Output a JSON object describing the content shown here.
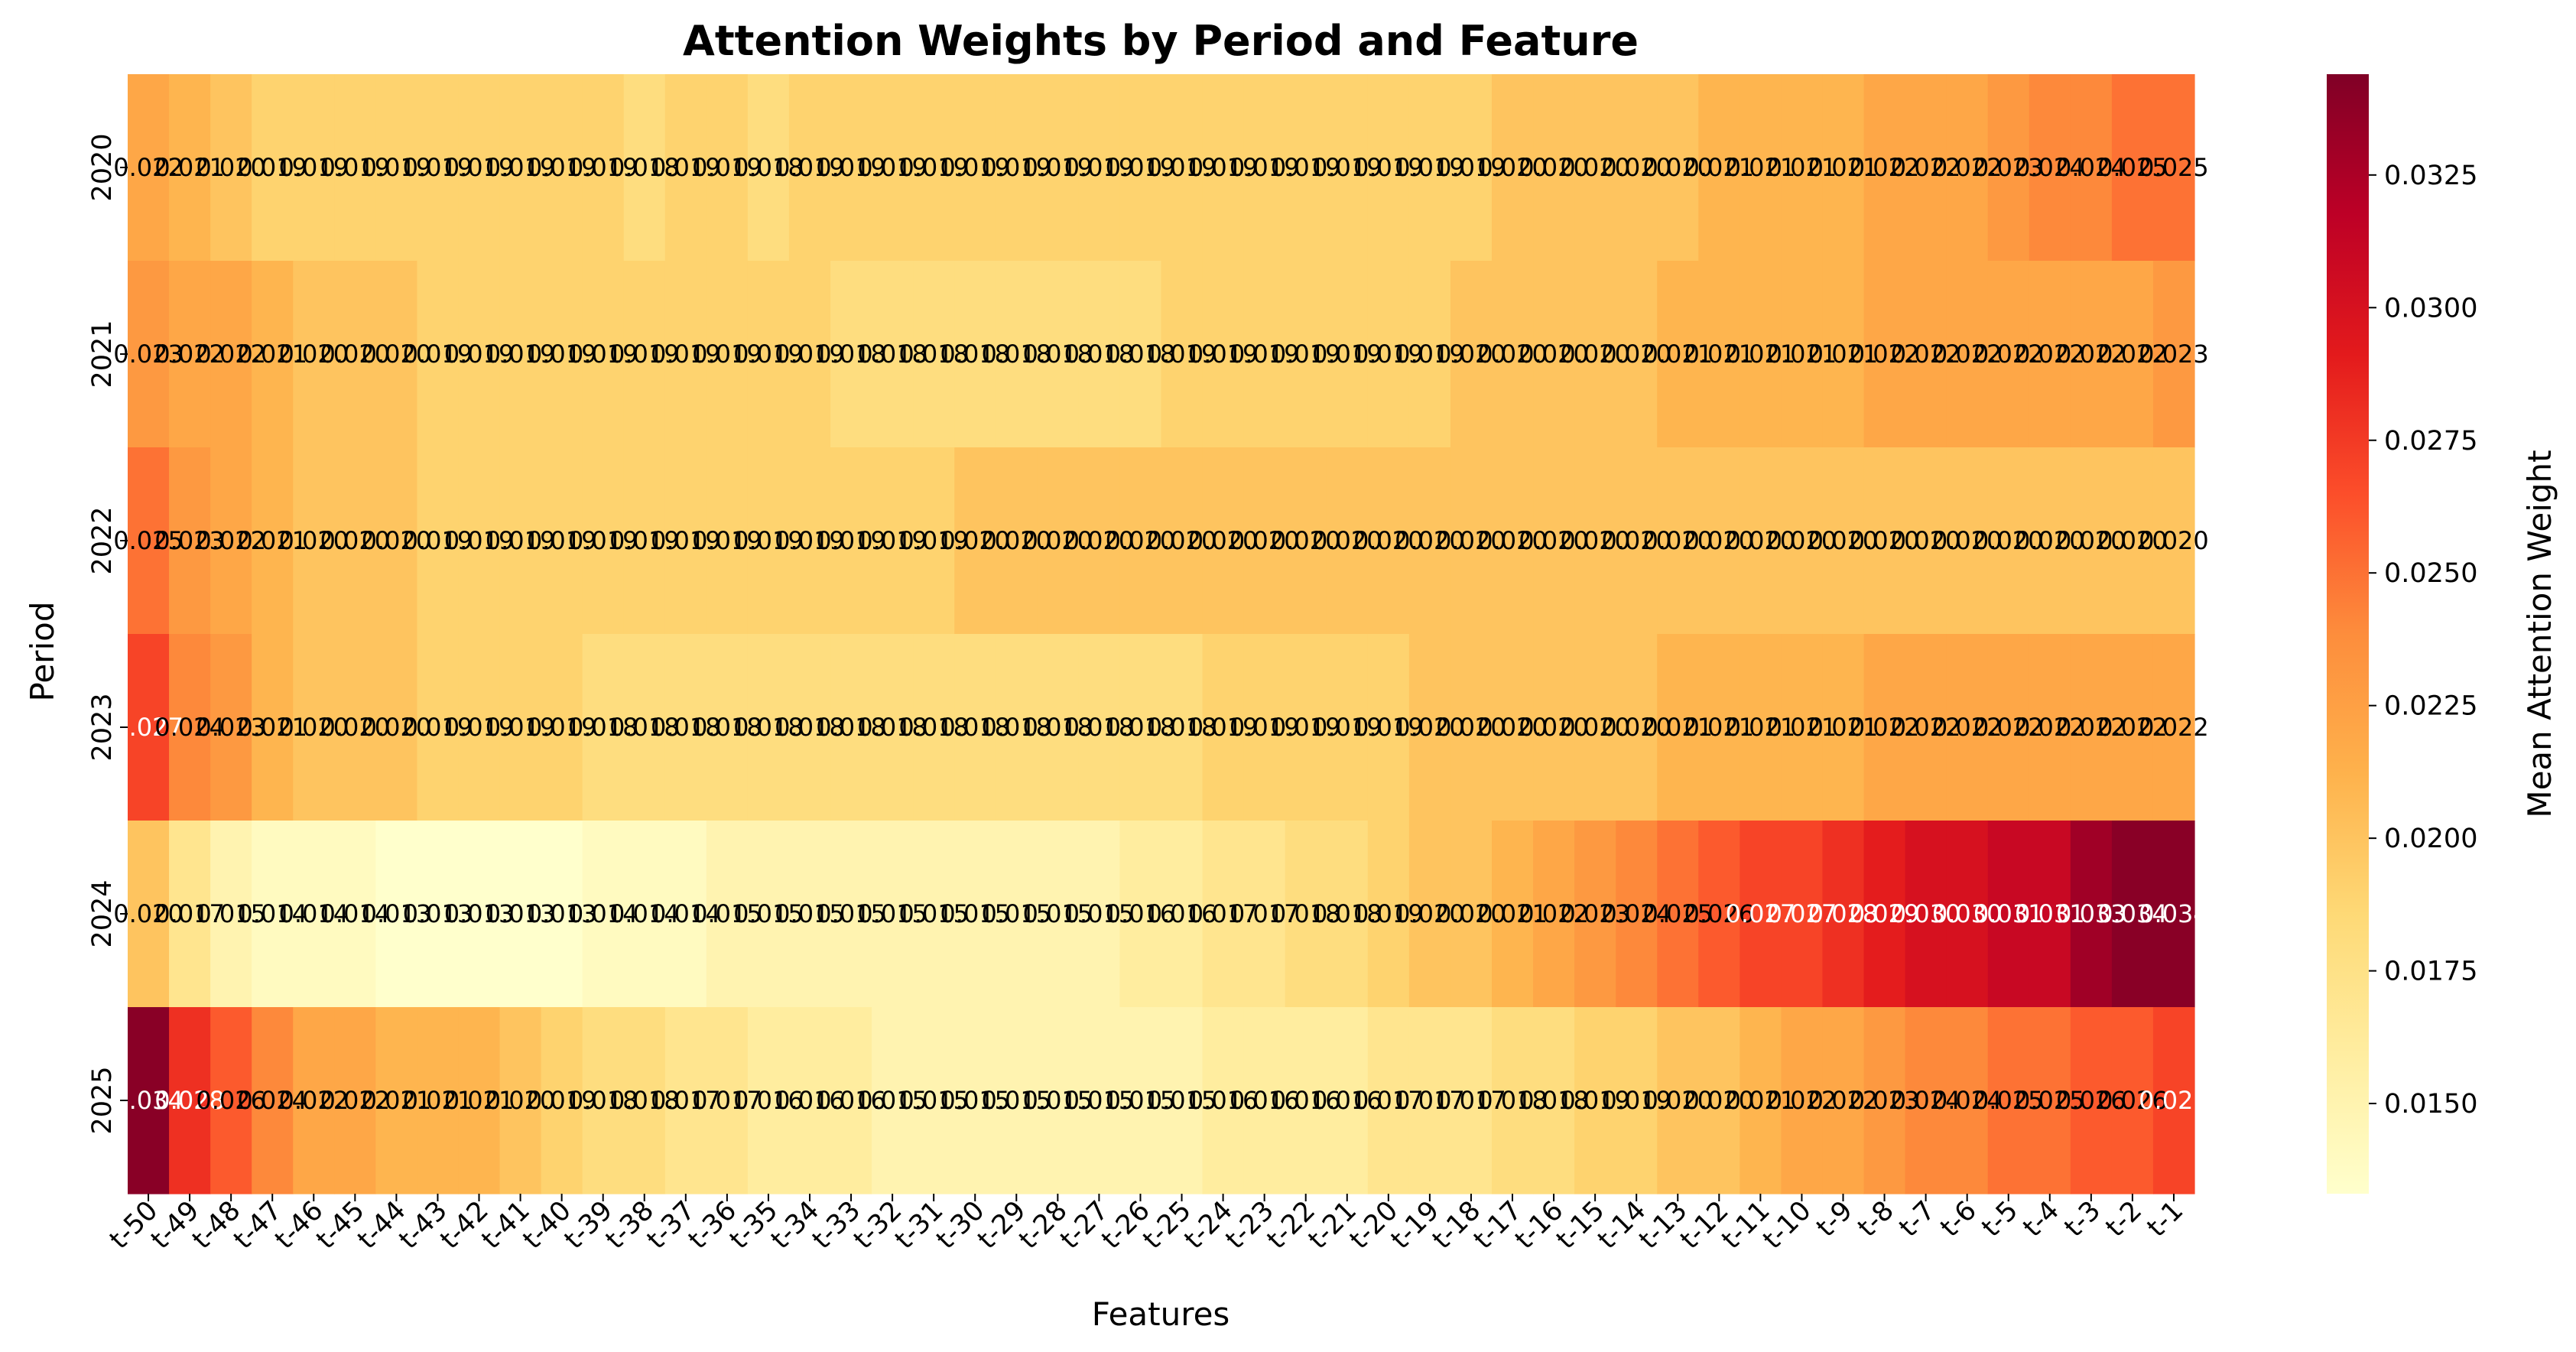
{
  "chart_data": {
    "type": "heatmap",
    "title": "Attention Weights by Period and Feature",
    "xlabel": "Features",
    "ylabel": "Period",
    "colorbar_label": "Mean Attention Weight",
    "colormap": "YlOrRd",
    "colormap_stops": [
      "#ffffcc",
      "#ffeda0",
      "#fed976",
      "#feb24c",
      "#fd8d3c",
      "#fc4e2a",
      "#e31a1c",
      "#bd0026",
      "#800026"
    ],
    "value_range": [
      0.0133,
      0.0344
    ],
    "colorbar_ticks": [
      0.015,
      0.0175,
      0.02,
      0.0225,
      0.025,
      0.0275,
      0.03,
      0.0325
    ],
    "colorbar_tick_labels": [
      "0.0150",
      "0.0175",
      "0.0200",
      "0.0225",
      "0.0250",
      "0.0275",
      "0.0300",
      "0.0325"
    ],
    "columns": [
      "t-50",
      "t-49",
      "t-48",
      "t-47",
      "t-46",
      "t-45",
      "t-44",
      "t-43",
      "t-42",
      "t-41",
      "t-40",
      "t-39",
      "t-38",
      "t-37",
      "t-36",
      "t-35",
      "t-34",
      "t-33",
      "t-32",
      "t-31",
      "t-30",
      "t-29",
      "t-28",
      "t-27",
      "t-26",
      "t-25",
      "t-24",
      "t-23",
      "t-22",
      "t-21",
      "t-20",
      "t-19",
      "t-18",
      "t-17",
      "t-16",
      "t-15",
      "t-14",
      "t-13",
      "t-12",
      "t-11",
      "t-10",
      "t-9",
      "t-8",
      "t-7",
      "t-6",
      "t-5",
      "t-4",
      "t-3",
      "t-2",
      "t-1"
    ],
    "rows": [
      "2020",
      "2021",
      "2022",
      "2023",
      "2024",
      "2025"
    ],
    "values": [
      [
        0.022,
        0.021,
        0.02,
        0.019,
        0.019,
        0.019,
        0.019,
        0.019,
        0.019,
        0.019,
        0.019,
        0.019,
        0.018,
        0.019,
        0.019,
        0.018,
        0.019,
        0.019,
        0.019,
        0.019,
        0.019,
        0.019,
        0.019,
        0.019,
        0.019,
        0.019,
        0.019,
        0.019,
        0.019,
        0.019,
        0.019,
        0.019,
        0.019,
        0.02,
        0.02,
        0.02,
        0.02,
        0.02,
        0.021,
        0.021,
        0.021,
        0.021,
        0.022,
        0.022,
        0.022,
        0.023,
        0.024,
        0.024,
        0.025,
        0.025
      ],
      [
        0.023,
        0.022,
        0.022,
        0.021,
        0.02,
        0.02,
        0.02,
        0.019,
        0.019,
        0.019,
        0.019,
        0.019,
        0.019,
        0.019,
        0.019,
        0.019,
        0.019,
        0.018,
        0.018,
        0.018,
        0.018,
        0.018,
        0.018,
        0.018,
        0.018,
        0.019,
        0.019,
        0.019,
        0.019,
        0.019,
        0.019,
        0.019,
        0.02,
        0.02,
        0.02,
        0.02,
        0.02,
        0.021,
        0.021,
        0.021,
        0.021,
        0.021,
        0.022,
        0.022,
        0.022,
        0.022,
        0.022,
        0.022,
        0.022,
        0.023
      ],
      [
        0.025,
        0.023,
        0.022,
        0.021,
        0.02,
        0.02,
        0.02,
        0.019,
        0.019,
        0.019,
        0.019,
        0.019,
        0.019,
        0.019,
        0.019,
        0.019,
        0.019,
        0.019,
        0.019,
        0.019,
        0.02,
        0.02,
        0.02,
        0.02,
        0.02,
        0.02,
        0.02,
        0.02,
        0.02,
        0.02,
        0.02,
        0.02,
        0.02,
        0.02,
        0.02,
        0.02,
        0.02,
        0.02,
        0.02,
        0.02,
        0.02,
        0.02,
        0.02,
        0.02,
        0.02,
        0.02,
        0.02,
        0.02,
        0.02,
        0.02
      ],
      [
        0.027,
        0.024,
        0.023,
        0.021,
        0.02,
        0.02,
        0.02,
        0.019,
        0.019,
        0.019,
        0.019,
        0.018,
        0.018,
        0.018,
        0.018,
        0.018,
        0.018,
        0.018,
        0.018,
        0.018,
        0.018,
        0.018,
        0.018,
        0.018,
        0.018,
        0.018,
        0.019,
        0.019,
        0.019,
        0.019,
        0.019,
        0.02,
        0.02,
        0.02,
        0.02,
        0.02,
        0.02,
        0.021,
        0.021,
        0.021,
        0.021,
        0.021,
        0.022,
        0.022,
        0.022,
        0.022,
        0.022,
        0.022,
        0.022,
        0.022
      ],
      [
        0.02,
        0.017,
        0.015,
        0.014,
        0.014,
        0.014,
        0.013,
        0.013,
        0.013,
        0.013,
        0.013,
        0.014,
        0.014,
        0.014,
        0.015,
        0.015,
        0.015,
        0.015,
        0.015,
        0.015,
        0.015,
        0.015,
        0.015,
        0.015,
        0.016,
        0.016,
        0.017,
        0.017,
        0.018,
        0.018,
        0.019,
        0.02,
        0.02,
        0.021,
        0.022,
        0.023,
        0.024,
        0.025,
        0.026,
        0.027,
        0.027,
        0.028,
        0.029,
        0.03,
        0.03,
        0.031,
        0.031,
        0.033,
        0.034,
        0.034
      ],
      [
        0.034,
        0.028,
        0.026,
        0.024,
        0.022,
        0.022,
        0.021,
        0.021,
        0.021,
        0.02,
        0.019,
        0.018,
        0.018,
        0.017,
        0.017,
        0.016,
        0.016,
        0.016,
        0.015,
        0.015,
        0.015,
        0.015,
        0.015,
        0.015,
        0.015,
        0.015,
        0.016,
        0.016,
        0.016,
        0.016,
        0.017,
        0.017,
        0.017,
        0.018,
        0.018,
        0.019,
        0.019,
        0.02,
        0.02,
        0.021,
        0.022,
        0.022,
        0.023,
        0.024,
        0.024,
        0.025,
        0.025,
        0.026,
        0.026,
        0.027
      ]
    ],
    "display_values": [
      [
        0.022,
        0.021,
        0.02,
        0.019,
        0.019,
        0.019,
        0.019,
        0.019,
        0.019,
        0.019,
        0.019,
        0.019,
        0.018,
        0.019,
        0.019,
        0.018,
        0.019,
        0.019,
        0.019,
        0.019,
        0.019,
        0.019,
        0.019,
        0.019,
        0.019,
        0.019,
        0.019,
        0.019,
        0.019,
        0.019,
        0.019,
        0.019,
        0.019,
        0.02,
        0.02,
        0.02,
        0.02,
        0.02,
        0.021,
        0.021,
        0.021,
        0.021,
        0.022,
        0.022,
        0.022,
        0.023,
        0.024,
        0.024,
        0.025,
        0.025
      ],
      [
        0.023,
        0.022,
        0.022,
        0.021,
        0.02,
        0.02,
        0.02,
        0.019,
        0.019,
        0.019,
        0.019,
        0.019,
        0.019,
        0.019,
        0.019,
        0.019,
        0.019,
        0.018,
        0.018,
        0.018,
        0.018,
        0.018,
        0.018,
        0.018,
        0.018,
        0.019,
        0.019,
        0.019,
        0.019,
        0.019,
        0.019,
        0.019,
        0.02,
        0.02,
        0.02,
        0.02,
        0.02,
        0.021,
        0.021,
        0.021,
        0.021,
        0.021,
        0.022,
        0.022,
        0.022,
        0.022,
        0.022,
        0.022,
        0.022,
        0.023
      ],
      [
        0.025,
        0.023,
        0.022,
        0.021,
        0.02,
        0.02,
        0.02,
        0.019,
        0.019,
        0.019,
        0.019,
        0.019,
        0.019,
        0.019,
        0.019,
        0.019,
        0.019,
        0.019,
        0.019,
        0.019,
        0.02,
        0.02,
        0.02,
        0.02,
        0.02,
        0.02,
        0.02,
        0.02,
        0.02,
        0.02,
        0.02,
        0.02,
        0.02,
        0.02,
        0.02,
        0.02,
        0.02,
        0.02,
        0.02,
        0.02,
        0.02,
        0.02,
        0.02,
        0.02,
        0.02,
        0.02,
        0.02,
        0.02,
        0.02,
        0.02
      ],
      [
        0.027,
        0.024,
        0.023,
        0.021,
        0.02,
        0.02,
        0.02,
        0.019,
        0.019,
        0.019,
        0.019,
        0.018,
        0.018,
        0.018,
        0.018,
        0.018,
        0.018,
        0.018,
        0.018,
        0.018,
        0.018,
        0.018,
        0.018,
        0.018,
        0.018,
        0.018,
        0.019,
        0.019,
        0.019,
        0.019,
        0.019,
        0.02,
        0.02,
        0.02,
        0.02,
        0.02,
        0.02,
        0.021,
        0.021,
        0.021,
        0.021,
        0.021,
        0.022,
        0.022,
        0.022,
        0.022,
        0.022,
        0.022,
        0.022,
        0.022
      ],
      [
        0.02,
        0.017,
        0.015,
        0.014,
        0.014,
        0.014,
        0.013,
        0.013,
        0.013,
        0.013,
        0.013,
        0.014,
        0.014,
        0.014,
        0.015,
        0.015,
        0.015,
        0.015,
        0.015,
        0.015,
        0.015,
        0.015,
        0.015,
        0.015,
        0.016,
        0.016,
        0.017,
        0.017,
        0.018,
        0.018,
        0.019,
        0.02,
        0.02,
        0.021,
        0.022,
        0.023,
        0.024,
        0.025,
        0.026,
        0.027,
        0.027,
        0.028,
        0.029,
        0.03,
        0.03,
        0.031,
        0.031,
        0.033,
        0.034,
        0.034
      ],
      [
        0.034,
        0.028,
        0.026,
        0.024,
        0.022,
        0.022,
        0.021,
        0.021,
        0.021,
        0.02,
        0.019,
        0.018,
        0.018,
        0.017,
        0.017,
        0.016,
        0.016,
        0.016,
        0.015,
        0.015,
        0.015,
        0.015,
        0.015,
        0.015,
        0.015,
        0.015,
        0.016,
        0.016,
        0.016,
        0.016,
        0.017,
        0.017,
        0.017,
        0.018,
        0.018,
        0.019,
        0.019,
        0.02,
        0.02,
        0.021,
        0.022,
        0.022,
        0.023,
        0.024,
        0.024,
        0.025,
        0.025,
        0.026,
        0.026,
        0.027
      ]
    ],
    "annotation_format": "0.000",
    "grid": false,
    "legend": "colorbar-right"
  }
}
